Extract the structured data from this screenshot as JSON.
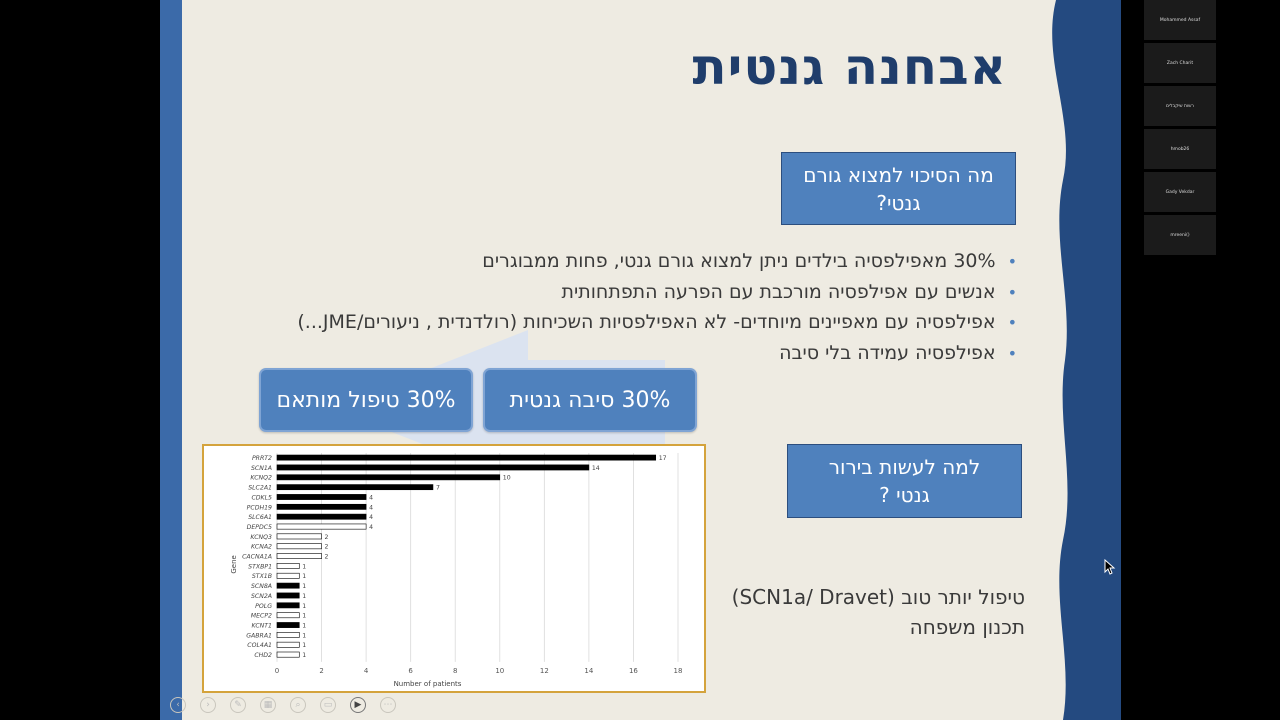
{
  "slide": {
    "title": "אבחנה גנטית",
    "question1": "מה הסיכוי למצוא גורם גנטי?",
    "bullets": [
      "30%  מאפילפסיה בילדים ניתן למצוא גורם גנטי, פחות ממבוגרים",
      "אנשים עם אפילפסיה מורכבת עם הפרעה התפתחותית",
      "אפילפסיה עם מאפיינים מיוחדים- לא האפילפסיות השכיחות (רולדנדית , ניעורים/JME...)",
      "אפילפסיה עמידה בלי סיבה"
    ],
    "pill_right": "30% סיבה גנטית",
    "pill_left": "30% טיפול מותאם",
    "question2": "למה לעשות בירור גנטי ?",
    "bottom_line1": "טיפול יותר טוב (SCN1a/ Dravet)",
    "bottom_line2": "תכנון משפחה"
  },
  "chart_data": {
    "type": "bar",
    "orientation": "horizontal",
    "categories": [
      "PRRT2",
      "SCN1A",
      "KCNQ2",
      "SLC2A1",
      "CDKL5",
      "PCDH19",
      "SLC6A1",
      "DEPDC5",
      "KCNQ3",
      "KCNA2",
      "CACNA1A",
      "STXBP1",
      "STX1B",
      "SCN8A",
      "SCN2A",
      "POLG",
      "MECP2",
      "KCNT1",
      "GABRA1",
      "COL4A1",
      "CHD2"
    ],
    "values": [
      17,
      14,
      10,
      7,
      4,
      4,
      4,
      4,
      2,
      2,
      2,
      1,
      1,
      1,
      1,
      1,
      1,
      1,
      1,
      1,
      1
    ],
    "filled": [
      true,
      true,
      true,
      true,
      true,
      true,
      true,
      false,
      false,
      false,
      false,
      false,
      false,
      true,
      true,
      true,
      false,
      true,
      false,
      false,
      false
    ],
    "xlabel": "Number of patients",
    "ylabel": "Gene",
    "xlim": [
      0,
      18
    ],
    "xticks": [
      0,
      2,
      4,
      6,
      8,
      10,
      12,
      14,
      16,
      18
    ],
    "grid": true
  },
  "participants": [
    "Mohammed Assaf",
    "Zach Charit",
    "רשות שיקבלים",
    "hmob26",
    "Gady Vekdar",
    "mreeni()"
  ],
  "colors": {
    "accent": "#4f81bd",
    "title": "#1f3d6b",
    "slide_bg": "#eeebe2",
    "chart_border": "#d4a33c",
    "wave": "#244a80"
  }
}
